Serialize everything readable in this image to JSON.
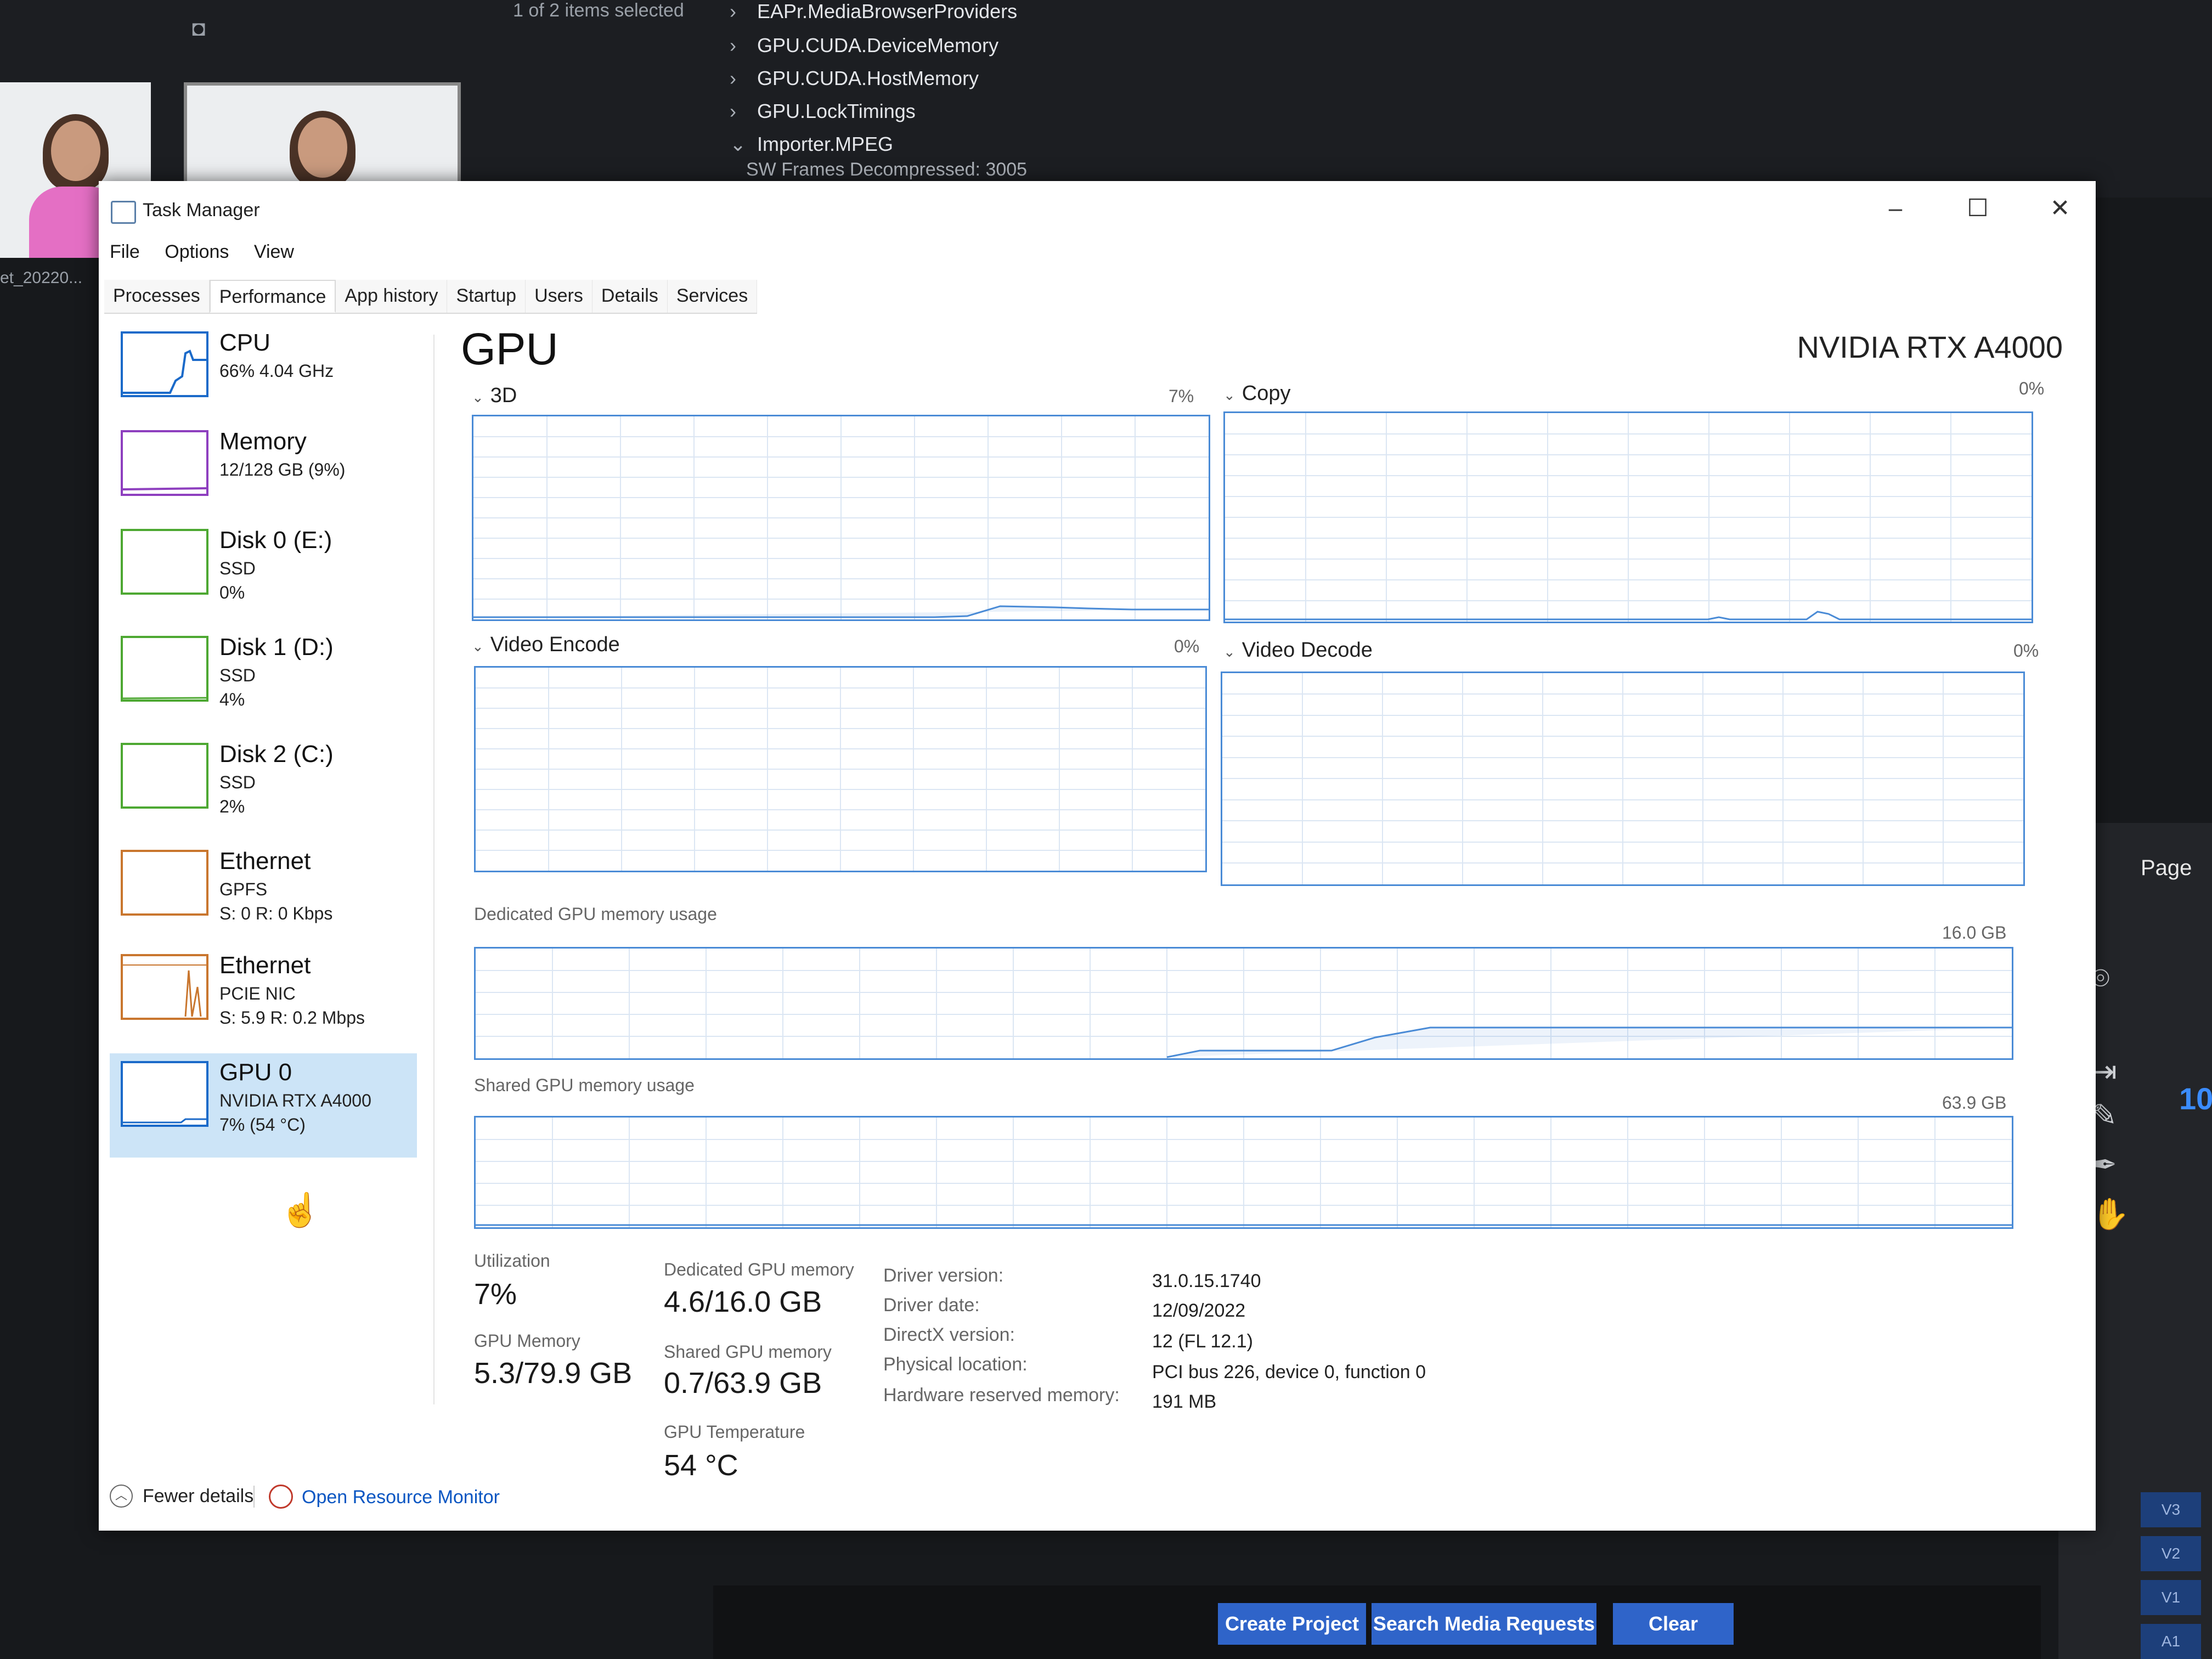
{
  "background": {
    "selection_text": "1 of 2 items selected",
    "clip_name": "et_20220...",
    "tree_items": [
      {
        "chev": "›",
        "label": "EAPr.MediaBrowserProviders"
      },
      {
        "chev": "›",
        "label": "GPU.CUDA.DeviceMemory"
      },
      {
        "chev": "›",
        "label": "GPU.CUDA.HostMemory"
      },
      {
        "chev": "›",
        "label": "GPU.LockTimings"
      },
      {
        "chev": "⌄",
        "label": "Importer.MPEG"
      }
    ],
    "tree_sub": "SW Frames Decompressed: 3005",
    "page_label": "Page",
    "timecode": "10",
    "tracks": [
      "V3",
      "V2",
      "V1",
      "A1"
    ],
    "bottom_buttons": {
      "create": "Create Project",
      "search": "Search Media Requests",
      "clear": "Clear"
    }
  },
  "window": {
    "title": "Task Manager",
    "controls": {
      "minimize": "–",
      "maximize": "☐",
      "close": "✕"
    },
    "menu": [
      "File",
      "Options",
      "View"
    ],
    "tabs": [
      "Processes",
      "Performance",
      "App history",
      "Startup",
      "Users",
      "Details",
      "Services"
    ],
    "active_tab": "Performance"
  },
  "sidebar": {
    "items": [
      {
        "name": "CPU",
        "line2": "66% 4.04 GHz",
        "line3": "",
        "color": "#1b6ac9"
      },
      {
        "name": "Memory",
        "line2": "12/128 GB (9%)",
        "line3": "",
        "color": "#8e3fbf"
      },
      {
        "name": "Disk 0 (E:)",
        "line2": "SSD",
        "line3": "0%",
        "color": "#4da832"
      },
      {
        "name": "Disk 1 (D:)",
        "line2": "SSD",
        "line3": "4%",
        "color": "#4da832"
      },
      {
        "name": "Disk 2 (C:)",
        "line2": "SSD",
        "line3": "2%",
        "color": "#4da832"
      },
      {
        "name": "Ethernet",
        "line2": "GPFS",
        "line3": "S: 0 R: 0 Kbps",
        "color": "#c9762e"
      },
      {
        "name": "Ethernet",
        "line2": "PCIE NIC",
        "line3": "S: 5.9 R: 0.2 Mbps",
        "color": "#c9762e"
      },
      {
        "name": "GPU 0",
        "line2": "NVIDIA RTX A4000",
        "line3": "7% (54 °C)",
        "color": "#1b6ac9"
      }
    ],
    "selected_index": 7
  },
  "gpu": {
    "title": "GPU",
    "model": "NVIDIA RTX A4000",
    "engines": [
      {
        "label": "3D",
        "pct": "7%"
      },
      {
        "label": "Copy",
        "pct": "0%"
      },
      {
        "label": "Video Encode",
        "pct": "0%"
      },
      {
        "label": "Video Decode",
        "pct": "0%"
      }
    ],
    "dedicated_label": "Dedicated GPU memory usage",
    "dedicated_max": "16.0 GB",
    "shared_label": "Shared GPU memory usage",
    "shared_max": "63.9 GB",
    "stats": {
      "utilization_label": "Utilization",
      "utilization": "7%",
      "gpu_memory_label": "GPU Memory",
      "gpu_memory": "5.3/79.9 GB",
      "dedicated_label": "Dedicated GPU memory",
      "dedicated": "4.6/16.0 GB",
      "shared_label": "Shared GPU memory",
      "shared": "0.7/63.9 GB",
      "temp_label": "GPU Temperature",
      "temp": "54 °C"
    },
    "info": [
      {
        "k": "Driver version:",
        "v": "31.0.15.1740"
      },
      {
        "k": "Driver date:",
        "v": "12/09/2022"
      },
      {
        "k": "DirectX version:",
        "v": "12 (FL 12.1)"
      },
      {
        "k": "Physical location:",
        "v": "PCI bus 226, device 0, function 0"
      },
      {
        "k": "Hardware reserved memory:",
        "v": "191 MB"
      }
    ]
  },
  "footer": {
    "fewer": "Fewer details",
    "monitor": "Open Resource Monitor"
  }
}
